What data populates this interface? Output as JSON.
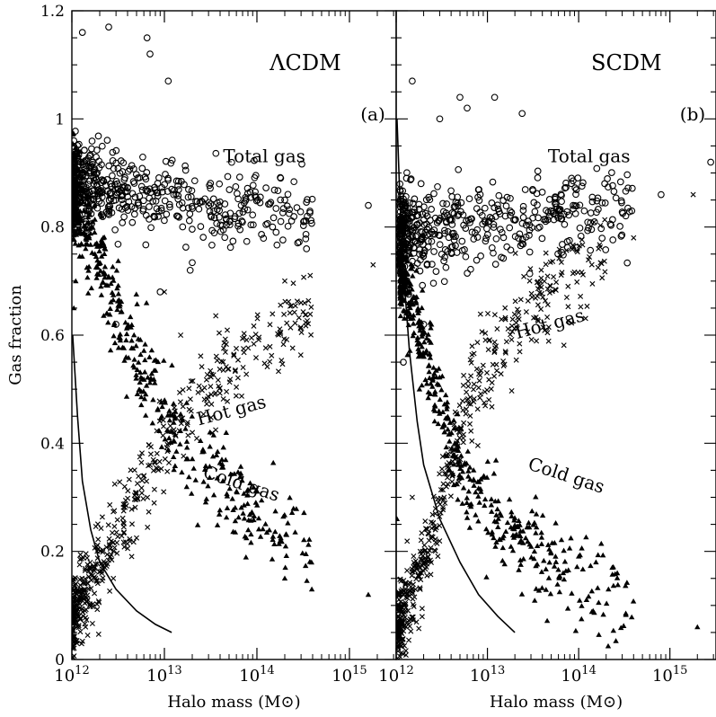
{
  "chart_data": [
    {
      "type": "scatter",
      "panel_label": "(a)",
      "model_label": "ΛCDM",
      "xscale": "log",
      "xlim": [
        1000000000000.0,
        3200000000000000.0
      ],
      "ylim": [
        0,
        1.2
      ],
      "xlabel": "Halo mass (M⊙)",
      "ylabel": "Gas fraction",
      "x_ticks": [
        {
          "value": 1000000000000.0,
          "base": "10",
          "exp": "12"
        },
        {
          "value": 10000000000000.0,
          "base": "10",
          "exp": "13"
        },
        {
          "value": 100000000000000.0,
          "base": "10",
          "exp": "14"
        },
        {
          "value": 1000000000000000.0,
          "base": "10",
          "exp": "15"
        }
      ],
      "y_ticks": [
        {
          "value": 0,
          "label": "0"
        },
        {
          "value": 0.2,
          "label": "0.2"
        },
        {
          "value": 0.4,
          "label": "0.4"
        },
        {
          "value": 0.6,
          "label": "0.6"
        },
        {
          "value": 0.8,
          "label": "0.8"
        },
        {
          "value": 1.0,
          "label": "1"
        },
        {
          "value": 1.2,
          "label": "1.2"
        }
      ],
      "annotations": [
        {
          "text": "Total gas",
          "x": 120000000000000.0,
          "y": 0.92,
          "rotate": 0
        },
        {
          "text": "Hot gas",
          "x": 55000000000000.0,
          "y": 0.45,
          "rotate": -15
        },
        {
          "text": "Cold gas",
          "x": 65000000000000.0,
          "y": 0.315,
          "rotate": 18
        }
      ],
      "series": [
        {
          "name": "Total gas",
          "marker": "circle",
          "trend": [
            [
              1050000000000.0,
              0.88
            ],
            [
              2000000000000.0,
              0.875
            ],
            [
              5000000000000.0,
              0.86
            ],
            [
              10000000000000.0,
              0.85
            ],
            [
              30000000000000.0,
              0.84
            ],
            [
              100000000000000.0,
              0.835
            ],
            [
              400000000000000.0,
              0.82
            ]
          ],
          "spread": 0.035,
          "outliers": [
            [
              1300000000000.0,
              1.16
            ],
            [
              2500000000000.0,
              1.17
            ],
            [
              6500000000000.0,
              1.15
            ],
            [
              7000000000000.0,
              1.12
            ],
            [
              11000000000000.0,
              1.07
            ],
            [
              1600000000000000.0,
              0.84
            ],
            [
              200000000000000.0,
              0.85
            ],
            [
              350000000000000.0,
              0.82
            ],
            [
              14000000000000.0,
              0.82
            ],
            [
              19000000000000.0,
              0.72
            ],
            [
              9000000000000.0,
              0.68
            ],
            [
              3000000000000.0,
              0.62
            ]
          ]
        },
        {
          "name": "Hot gas",
          "marker": "cross",
          "trend": [
            [
              1020000000000.0,
              0.08
            ],
            [
              1500000000000.0,
              0.14
            ],
            [
              2500000000000.0,
              0.2
            ],
            [
              5000000000000.0,
              0.3
            ],
            [
              10000000000000.0,
              0.4
            ],
            [
              20000000000000.0,
              0.47
            ],
            [
              50000000000000.0,
              0.54
            ],
            [
              100000000000000.0,
              0.59
            ],
            [
              200000000000000.0,
              0.62
            ],
            [
              400000000000000.0,
              0.64
            ]
          ],
          "spread": 0.04,
          "outliers": [
            [
              1800000000000000.0,
              0.73
            ],
            [
              10000000000000.0,
              0.68
            ],
            [
              15000000000000.0,
              0.6
            ],
            [
              200000000000000.0,
              0.7
            ],
            [
              300000000000000.0,
              0.66
            ]
          ]
        },
        {
          "name": "Cold gas",
          "marker": "triangle",
          "trend": [
            [
              1020000000000.0,
              0.87
            ],
            [
              1500000000000.0,
              0.8
            ],
            [
              2000000000000.0,
              0.75
            ],
            [
              3000000000000.0,
              0.66
            ],
            [
              5000000000000.0,
              0.55
            ],
            [
              10000000000000.0,
              0.45
            ],
            [
              20000000000000.0,
              0.37
            ],
            [
              50000000000000.0,
              0.31
            ],
            [
              100000000000000.0,
              0.27
            ],
            [
              200000000000000.0,
              0.24
            ],
            [
              400000000000000.0,
              0.2
            ]
          ],
          "spread": 0.045,
          "outliers": [
            [
              1600000000000000.0,
              0.12
            ],
            [
              1050000000000.0,
              0.65
            ],
            [
              1100000000000.0,
              0.7
            ],
            [
              200000000000000.0,
              0.15
            ]
          ]
        }
      ],
      "curve": [
        [
          1020000000000.0,
          0.6
        ],
        [
          1150000000000.0,
          0.45
        ],
        [
          1300000000000.0,
          0.33
        ],
        [
          1600000000000.0,
          0.24
        ],
        [
          2000000000000.0,
          0.18
        ],
        [
          3000000000000.0,
          0.13
        ],
        [
          5000000000000.0,
          0.09
        ],
        [
          8000000000000.0,
          0.065
        ],
        [
          12000000000000.0,
          0.05
        ]
      ]
    },
    {
      "type": "scatter",
      "panel_label": "(b)",
      "model_label": "SCDM",
      "xscale": "log",
      "xlim": [
        1000000000000.0,
        3200000000000000.0
      ],
      "ylim": [
        0,
        1.2
      ],
      "xlabel": "Halo mass (M⊙)",
      "ylabel": "",
      "x_ticks": [
        {
          "value": 1000000000000.0,
          "base": "10",
          "exp": "12"
        },
        {
          "value": 10000000000000.0,
          "base": "10",
          "exp": "13"
        },
        {
          "value": 100000000000000.0,
          "base": "10",
          "exp": "14"
        },
        {
          "value": 1000000000000000.0,
          "base": "10",
          "exp": "15"
        }
      ],
      "y_ticks": [
        {
          "value": 0,
          "label": ""
        },
        {
          "value": 0.2,
          "label": ""
        },
        {
          "value": 0.4,
          "label": ""
        },
        {
          "value": 0.6,
          "label": ""
        },
        {
          "value": 0.8,
          "label": ""
        },
        {
          "value": 1.0,
          "label": ""
        },
        {
          "value": 1.2,
          "label": ""
        }
      ],
      "annotations": [
        {
          "text": "Total gas",
          "x": 130000000000000.0,
          "y": 0.92,
          "rotate": 0
        },
        {
          "text": "Hot gas",
          "x": 50000000000000.0,
          "y": 0.61,
          "rotate": -15
        },
        {
          "text": "Cold gas",
          "x": 70000000000000.0,
          "y": 0.33,
          "rotate": 18
        }
      ],
      "series": [
        {
          "name": "Total gas",
          "marker": "circle",
          "trend": [
            [
              1100000000000.0,
              0.79
            ],
            [
              2000000000000.0,
              0.79
            ],
            [
              5000000000000.0,
              0.8
            ],
            [
              10000000000000.0,
              0.81
            ],
            [
              30000000000000.0,
              0.82
            ],
            [
              100000000000000.0,
              0.835
            ],
            [
              400000000000000.0,
              0.85
            ]
          ],
          "spread": 0.04,
          "outliers": [
            [
              1500000000000.0,
              1.07
            ],
            [
              3000000000000.0,
              1.0
            ],
            [
              5000000000000.0,
              1.04
            ],
            [
              6000000000000.0,
              1.02
            ],
            [
              12000000000000.0,
              1.04
            ],
            [
              24000000000000.0,
              1.01
            ],
            [
              2800000000000000.0,
              0.92
            ],
            [
              800000000000000.0,
              0.86
            ],
            [
              1200000000000.0,
              0.55
            ],
            [
              2000000000000.0,
              0.62
            ]
          ]
        },
        {
          "name": "Hot gas",
          "marker": "cross",
          "trend": [
            [
              1050000000000.0,
              0.06
            ],
            [
              1500000000000.0,
              0.12
            ],
            [
              2000000000000.0,
              0.17
            ],
            [
              3000000000000.0,
              0.27
            ],
            [
              4000000000000.0,
              0.37
            ],
            [
              6000000000000.0,
              0.47
            ],
            [
              10000000000000.0,
              0.55
            ],
            [
              20000000000000.0,
              0.62
            ],
            [
              50000000000000.0,
              0.68
            ],
            [
              100000000000000.0,
              0.72
            ],
            [
              200000000000000.0,
              0.75
            ]
          ],
          "spread": 0.04,
          "outliers": [
            [
              1800000000000000.0,
              0.86
            ],
            [
              400000000000000.0,
              0.78
            ],
            [
              1500000000000.0,
              0.3
            ]
          ]
        },
        {
          "name": "Cold gas",
          "marker": "triangle",
          "trend": [
            [
              1100000000000.0,
              0.72
            ],
            [
              1500000000000.0,
              0.66
            ],
            [
              2000000000000.0,
              0.58
            ],
            [
              3000000000000.0,
              0.47
            ],
            [
              4000000000000.0,
              0.4
            ],
            [
              6000000000000.0,
              0.33
            ],
            [
              10000000000000.0,
              0.28
            ],
            [
              20000000000000.0,
              0.23
            ],
            [
              50000000000000.0,
              0.18
            ],
            [
              100000000000000.0,
              0.15
            ],
            [
              200000000000000.0,
              0.12
            ],
            [
              400000000000000.0,
              0.09
            ]
          ],
          "spread": 0.04,
          "outliers": [
            [
              2000000000000000.0,
              0.06
            ],
            [
              1800000000000.0,
              0.5
            ],
            [
              1020000000000.0,
              0.26
            ]
          ]
        }
      ],
      "curve": [
        [
          1020000000000.0,
          1.0
        ],
        [
          1100000000000.0,
          0.85
        ],
        [
          1200000000000.0,
          0.72
        ],
        [
          1400000000000.0,
          0.57
        ],
        [
          1700000000000.0,
          0.44
        ],
        [
          2000000000000.0,
          0.36
        ],
        [
          3000000000000.0,
          0.26
        ],
        [
          5000000000000.0,
          0.18
        ],
        [
          8000000000000.0,
          0.12
        ],
        [
          13000000000000.0,
          0.08
        ],
        [
          20000000000000.0,
          0.05
        ]
      ]
    }
  ]
}
